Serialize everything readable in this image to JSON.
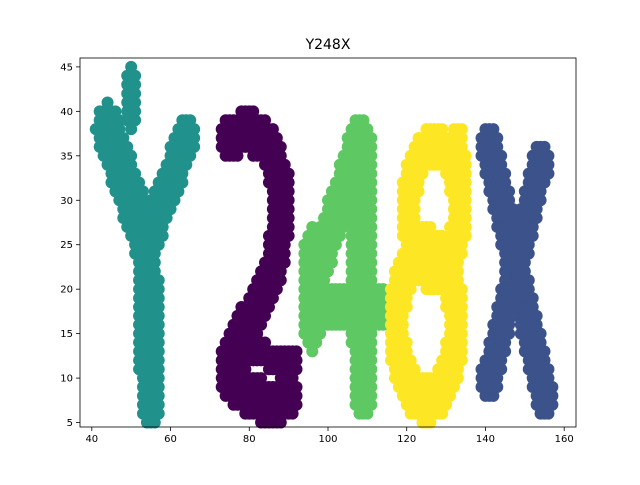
{
  "chart_data": {
    "type": "scatter",
    "title": "Y248X",
    "xlabel": "",
    "ylabel": "",
    "xlim": [
      37,
      163
    ],
    "ylim": [
      4.5,
      46
    ],
    "xticks": [
      40,
      60,
      80,
      100,
      120,
      140,
      160
    ],
    "yticks": [
      5,
      10,
      15,
      20,
      25,
      30,
      35,
      40,
      45
    ],
    "grid": false,
    "legend": "none",
    "series": [
      {
        "letter": "Y",
        "color": "#21918c",
        "strokes": [
          {
            "type": "line",
            "x0": 44,
            "y0": 38,
            "x1": 54,
            "y1": 25,
            "w": 3.0
          },
          {
            "type": "line",
            "x0": 64,
            "y0": 37,
            "x1": 54,
            "y1": 25,
            "w": 2.5
          },
          {
            "type": "line",
            "x0": 54,
            "y0": 25,
            "x1": 55,
            "y1": 7,
            "w": 2.8
          },
          {
            "type": "line",
            "x0": 50,
            "y0": 44,
            "x1": 50,
            "y1": 39,
            "w": 1.0
          }
        ]
      },
      {
        "letter": "2",
        "color": "#440154",
        "strokes": [
          {
            "type": "poly",
            "points": [
              [
                75,
                37
              ],
              [
                80,
                38
              ],
              [
                85,
                36
              ],
              [
                88,
                32
              ],
              [
                88,
                27
              ],
              [
                86,
                22
              ],
              [
                82,
                18
              ],
              [
                78,
                15
              ],
              [
                75,
                12
              ],
              [
                75,
                10
              ],
              [
                80,
                8
              ],
              [
                86,
                7
              ],
              [
                90,
                8
              ]
            ],
            "w": 2.5
          },
          {
            "type": "line",
            "x0": 78,
            "y0": 13,
            "x1": 91,
            "y1": 12,
            "w": 1.5
          }
        ]
      },
      {
        "letter": "4",
        "color": "#5ec962",
        "strokes": [
          {
            "type": "line",
            "x0": 108,
            "y0": 37,
            "x1": 96,
            "y1": 20,
            "w": 2.5
          },
          {
            "type": "line",
            "x0": 108,
            "y0": 37,
            "x1": 109,
            "y1": 8,
            "w": 2.8
          },
          {
            "type": "line",
            "x0": 96,
            "y0": 18,
            "x1": 113,
            "y1": 18,
            "w": 2.5
          },
          {
            "type": "line",
            "x0": 96,
            "y0": 25,
            "x1": 96,
            "y1": 15,
            "w": 2.0
          },
          {
            "type": "line",
            "x0": 110,
            "y0": 36,
            "x1": 110,
            "y1": 31,
            "w": 1.5
          }
        ]
      },
      {
        "letter": "8",
        "color": "#fde725",
        "strokes": [
          {
            "type": "ellipse",
            "cx": 127,
            "cy": 29,
            "rx": 6.5,
            "ry": 7.0,
            "w": 2.3
          },
          {
            "type": "ellipse",
            "cx": 125,
            "cy": 16,
            "rx": 7.5,
            "ry": 8.5,
            "w": 2.5
          },
          {
            "type": "line",
            "x0": 133,
            "y0": 37,
            "x1": 134,
            "y1": 33,
            "w": 1.5
          }
        ]
      },
      {
        "letter": "X",
        "color": "#3b528b",
        "strokes": [
          {
            "type": "line",
            "x0": 141,
            "y0": 36,
            "x1": 155,
            "y1": 8,
            "w": 2.3
          },
          {
            "type": "line",
            "x0": 154,
            "y0": 34,
            "x1": 141,
            "y1": 10,
            "w": 2.3
          }
        ]
      }
    ]
  }
}
